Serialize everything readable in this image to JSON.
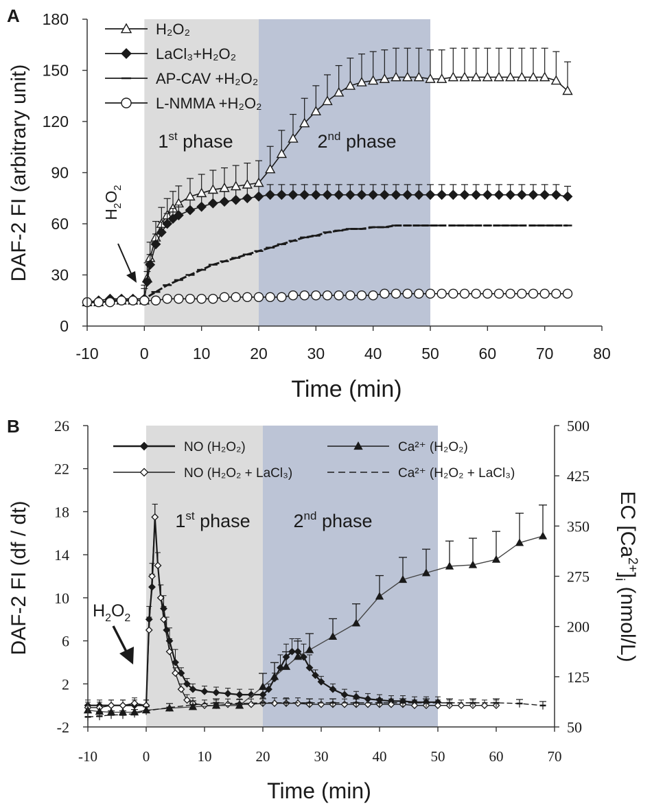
{
  "chart_data": [
    {
      "type": "line",
      "panel_label": "A",
      "xlabel": "Time (min)",
      "ylabel": "DAF-2 FI (arbitrary unit)",
      "xlim": [
        -10,
        80
      ],
      "ylim": [
        0,
        180
      ],
      "x_ticks": [
        "-10",
        "0",
        "10",
        "20",
        "30",
        "40",
        "50",
        "60",
        "70",
        "80"
      ],
      "y_ticks": [
        "0",
        "30",
        "60",
        "90",
        "120",
        "150",
        "180"
      ],
      "phases": [
        {
          "start": 0,
          "end": 20,
          "label": "1",
          "sup": "st",
          "rest": " phase",
          "color": "#dcdcdc"
        },
        {
          "start": 20,
          "end": 50,
          "label": "2",
          "sup": "nd",
          "rest": " phase",
          "color": "#bcc4d6"
        }
      ],
      "annotation": {
        "text": "H",
        "sub": "2",
        "tail": "O",
        "sub2": "2",
        "x": -2,
        "y": 17
      },
      "series": [
        {
          "key": "h2o2",
          "name": "H₂O₂",
          "marker": "open-triangle",
          "x": [
            -10,
            -8,
            -6,
            -4,
            -2,
            0,
            0.5,
            1,
            2,
            3,
            4,
            5,
            6,
            8,
            10,
            12,
            14,
            16,
            18,
            20,
            22,
            24,
            26,
            28,
            30,
            32,
            34,
            36,
            38,
            40,
            42,
            44,
            46,
            48,
            50,
            52,
            54,
            56,
            58,
            60,
            62,
            64,
            66,
            68,
            70,
            72,
            74
          ],
          "y": [
            14,
            14,
            15,
            15,
            15,
            15,
            28,
            40,
            52,
            60,
            65,
            69,
            72,
            76,
            78,
            80,
            81,
            82,
            83,
            84,
            92,
            101,
            110,
            119,
            126,
            132,
            137,
            141,
            143,
            144,
            145,
            146,
            146,
            146,
            145,
            145,
            146,
            146,
            146,
            146,
            146,
            146,
            146,
            146,
            146,
            144,
            138
          ]
        },
        {
          "key": "lacl3",
          "name": "LaCl₃+H₂O₂",
          "marker": "filled-diamond",
          "x": [
            -10,
            -8,
            -6,
            -4,
            -2,
            0,
            0.5,
            1,
            2,
            3,
            4,
            5,
            6,
            8,
            10,
            12,
            14,
            16,
            18,
            20,
            22,
            24,
            26,
            28,
            30,
            32,
            34,
            36,
            38,
            40,
            42,
            44,
            46,
            48,
            50,
            52,
            54,
            56,
            58,
            60,
            62,
            64,
            66,
            68,
            70,
            72,
            74
          ],
          "y": [
            14,
            15,
            16,
            16,
            16,
            16,
            26,
            36,
            48,
            55,
            60,
            63,
            65,
            68,
            70,
            72,
            73,
            74,
            75,
            76,
            77,
            77,
            77,
            77,
            77,
            77,
            77,
            77,
            77,
            77,
            77,
            77,
            77,
            77,
            77,
            77,
            77,
            77,
            77,
            77,
            77,
            77,
            77,
            77,
            77,
            77,
            76
          ]
        },
        {
          "key": "apcav",
          "name": "AP-CAV +H₂O₂",
          "marker": "dash",
          "x": [
            -10,
            -8,
            -6,
            -4,
            -2,
            0,
            2,
            4,
            6,
            8,
            10,
            12,
            14,
            16,
            18,
            20,
            22,
            24,
            26,
            28,
            30,
            32,
            34,
            36,
            38,
            40,
            42,
            44,
            46,
            48,
            50,
            52,
            54,
            56,
            58,
            60,
            62,
            64,
            66,
            68,
            70,
            72,
            74
          ],
          "y": [
            14,
            14,
            15,
            15,
            15,
            16,
            20,
            24,
            27,
            30,
            33,
            36,
            38,
            40,
            42,
            44,
            46,
            48,
            50,
            52,
            53,
            55,
            56,
            57,
            57,
            58,
            58,
            59,
            59,
            59,
            59,
            59,
            59,
            59,
            59,
            59,
            59,
            59,
            59,
            59,
            59,
            59,
            59
          ]
        },
        {
          "key": "lnmma",
          "name": "L-NMMA +H₂O₂",
          "marker": "open-circle",
          "x": [
            -10,
            -8,
            -6,
            -4,
            -2,
            0,
            2,
            4,
            6,
            8,
            10,
            12,
            14,
            16,
            18,
            20,
            22,
            24,
            26,
            28,
            30,
            32,
            34,
            36,
            38,
            40,
            42,
            44,
            46,
            48,
            50,
            52,
            54,
            56,
            58,
            60,
            62,
            64,
            66,
            68,
            70,
            72,
            74
          ],
          "y": [
            14,
            14,
            14,
            15,
            15,
            15,
            15,
            16,
            16,
            16,
            16,
            16,
            17,
            17,
            17,
            17,
            17,
            17,
            18,
            18,
            18,
            18,
            18,
            18,
            18,
            18,
            19,
            19,
            19,
            19,
            19,
            19,
            19,
            19,
            19,
            19,
            19,
            19,
            19,
            19,
            19,
            19,
            19
          ]
        }
      ]
    },
    {
      "type": "line",
      "panel_label": "B",
      "xlabel": "Time (min)",
      "ylabel": "DAF-2 FI (df / dt)",
      "y2label_prefix": "EC [Ca",
      "y2label_sup": "2+",
      "y2label_suffix": "]",
      "y2label_sub": "i",
      "y2label_tail": " (nmol/L)",
      "xlim": [
        -10,
        70
      ],
      "ylim": [
        -2,
        26
      ],
      "y2lim": [
        50,
        500
      ],
      "x_ticks": [
        "-10",
        "0",
        "10",
        "20",
        "30",
        "40",
        "50",
        "60",
        "70"
      ],
      "y_ticks": [
        "-2",
        "2",
        "6",
        "10",
        "14",
        "18",
        "22",
        "26"
      ],
      "y2_ticks": [
        "50",
        "125",
        "200",
        "275",
        "350",
        "425",
        "500"
      ],
      "phases": [
        {
          "start": 0,
          "end": 20,
          "label": "1",
          "sup": "st",
          "rest": " phase",
          "color": "#dcdcdc"
        },
        {
          "start": 20,
          "end": 50,
          "label": "2",
          "sup": "nd",
          "rest": " phase",
          "color": "#bcc4d6"
        }
      ],
      "annotation": {
        "text": "H",
        "sub": "2",
        "tail": "O",
        "sub2": "2",
        "x": -2,
        "y": 3
      },
      "series": [
        {
          "key": "no_h2o2",
          "name": "NO (H₂O₂)",
          "axis": "left",
          "marker": "filled-diamond",
          "x": [
            -10,
            -8,
            -6,
            -4,
            -2,
            0,
            0.5,
            1,
            1.5,
            2,
            2.5,
            3,
            3.5,
            4,
            5,
            6,
            7,
            8,
            10,
            12,
            14,
            16,
            18,
            20,
            21,
            22,
            23,
            24,
            25,
            26,
            27,
            28,
            29,
            30,
            32,
            34,
            36,
            38,
            40,
            42,
            44,
            46,
            48,
            50
          ],
          "y": [
            0,
            0,
            0,
            0,
            0,
            0,
            8,
            11,
            17.5,
            13,
            10,
            9,
            7,
            6,
            4,
            3,
            2,
            1.5,
            1.3,
            1.2,
            1.1,
            1,
            1,
            1,
            1.5,
            2.5,
            3.5,
            4.5,
            5,
            5,
            4.5,
            3.5,
            2.8,
            2.2,
            1.5,
            1,
            0.8,
            0.6,
            0.5,
            0.4,
            0.4,
            0.3,
            0.3,
            0.3
          ]
        },
        {
          "key": "no_h2o2_la",
          "name": "NO (H₂O₂ + LaCl₃)",
          "axis": "left",
          "marker": "open-diamond",
          "x": [
            -10,
            -8,
            -6,
            -4,
            -2,
            0,
            0.5,
            1,
            1.5,
            2,
            2.5,
            3,
            4,
            5,
            6,
            7,
            8,
            10,
            12,
            14,
            16,
            18,
            20,
            22,
            24,
            26,
            28,
            30,
            32,
            34,
            36,
            38,
            40,
            42,
            44,
            46,
            48,
            50,
            52,
            54,
            56,
            58,
            60
          ],
          "y": [
            -0.2,
            -0.2,
            0,
            0,
            0.2,
            0,
            7,
            12,
            17.5,
            13,
            10,
            8,
            5,
            3,
            1.5,
            0.5,
            0.2,
            0,
            0,
            0.1,
            0.1,
            0.1,
            0.2,
            0.2,
            0.2,
            0.2,
            0.1,
            0.1,
            0.1,
            0.1,
            0.1,
            0.1,
            0.1,
            0.1,
            0.1,
            0,
            0,
            0,
            0,
            0,
            0,
            0,
            0
          ]
        },
        {
          "key": "ca_h2o2",
          "name": "Ca²⁺ (H₂O₂)",
          "axis": "right",
          "marker": "filled-triangle",
          "x": [
            -10,
            -8,
            -6,
            -4,
            -2,
            0,
            4,
            8,
            12,
            16,
            20,
            22,
            24,
            26,
            28,
            32,
            36,
            40,
            44,
            48,
            52,
            56,
            60,
            64,
            68
          ],
          "y": [
            75,
            73,
            72,
            72,
            72,
            75,
            78,
            80,
            82,
            82,
            110,
            125,
            140,
            155,
            165,
            185,
            205,
            245,
            270,
            280,
            290,
            292,
            300,
            325,
            335
          ]
        },
        {
          "key": "ca_h2o2_la",
          "name": "Ca²⁺ (H₂O₂ + LaCl₃)",
          "axis": "right",
          "marker": "dash",
          "x": [
            -10,
            -8,
            -6,
            -4,
            -2,
            0,
            4,
            8,
            12,
            16,
            20,
            24,
            28,
            32,
            36,
            40,
            44,
            48,
            52,
            56,
            60,
            64,
            68
          ],
          "y": [
            65,
            66,
            68,
            68,
            70,
            74,
            79,
            83,
            86,
            85,
            86,
            86,
            86,
            86,
            86,
            86,
            86,
            86,
            86,
            86,
            86,
            85,
            82
          ]
        }
      ]
    }
  ]
}
